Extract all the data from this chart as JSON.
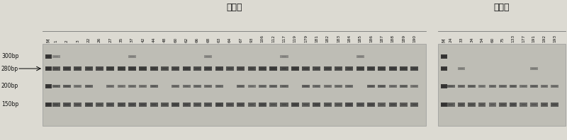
{
  "title_high": "高油组",
  "title_low": "低油组",
  "bg_color": "#dcdad2",
  "gel_bg": "#c8c6bc",
  "band_dark": "#2a2a2a",
  "band_mid": "#484848",
  "left_labels": [
    "300bp",
    "280bp",
    "200bp",
    "150bp"
  ],
  "marker_label": "M",
  "high_oil_samples": [
    "1",
    "2",
    "3",
    "22",
    "26",
    "27",
    "35",
    "37",
    "42",
    "44",
    "48",
    "60",
    "62",
    "66",
    "68",
    "63",
    "64",
    "67",
    "93",
    "106",
    "112",
    "117",
    "119",
    "179",
    "181",
    "182",
    "183",
    "184",
    "185",
    "186",
    "187",
    "188",
    "189",
    "190"
  ],
  "low_oil_samples": [
    "24",
    "33",
    "34",
    "54",
    "60",
    "75",
    "133",
    "177",
    "191",
    "192",
    "193"
  ],
  "title_fontsize": 9,
  "label_fontsize": 5.5,
  "sample_fontsize": 4.2,
  "fig_w": 8.0,
  "fig_h": 1.98
}
